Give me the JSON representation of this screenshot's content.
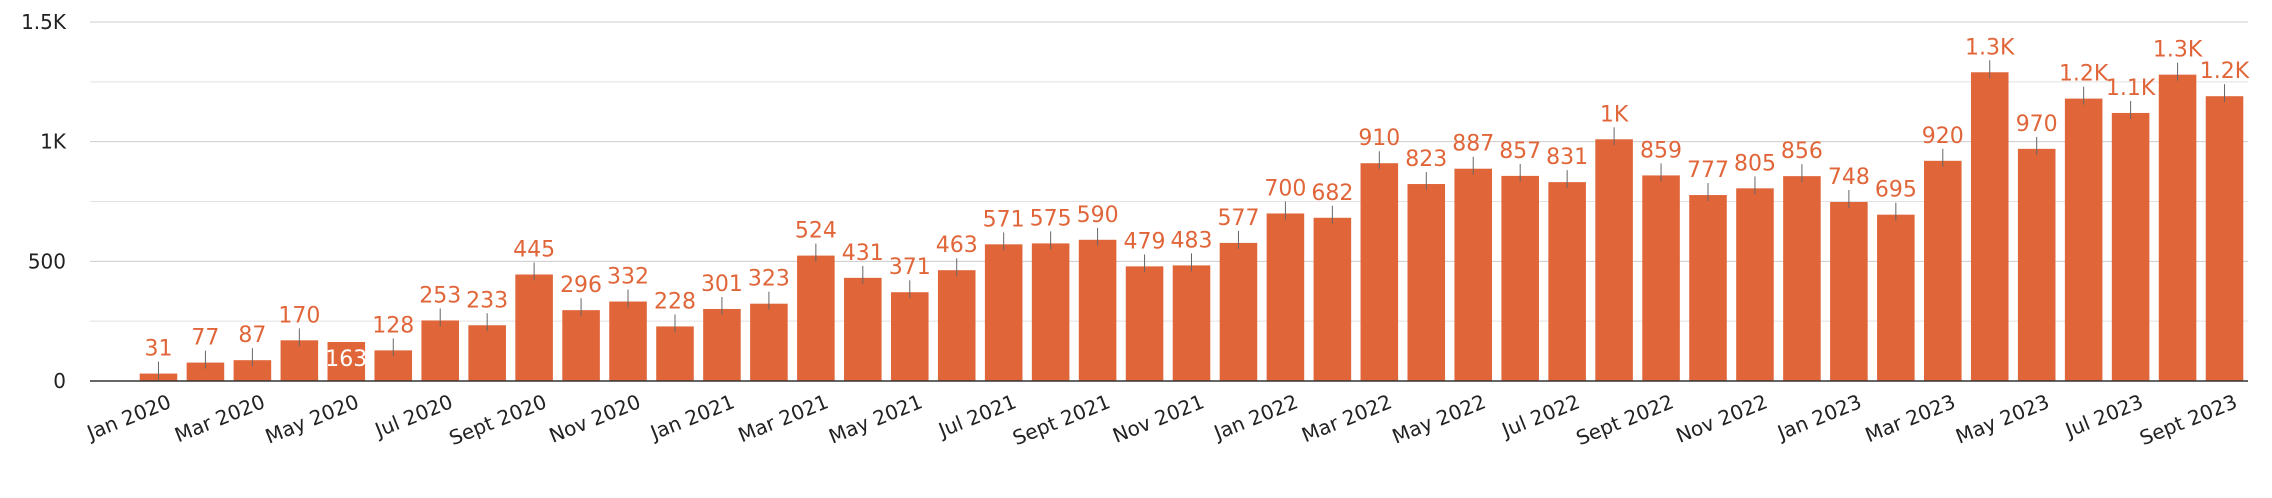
{
  "chart_data": {
    "type": "bar",
    "title": "",
    "xlabel": "",
    "ylabel": "",
    "ylim": [
      0,
      1500
    ],
    "y_ticks": [
      0,
      500,
      1000,
      1500
    ],
    "y_tick_labels": [
      "0",
      "500",
      "1K",
      "1.5K"
    ],
    "grid": true,
    "legend": "none",
    "bar_color": "#e0663a",
    "label_color": "#e0663a",
    "categories": [
      "Jan 2020",
      "Feb 2020",
      "Mar 2020",
      "Apr 2020",
      "May 2020",
      "Jun 2020",
      "Jul 2020",
      "Aug 2020",
      "Sept 2020",
      "Oct 2020",
      "Nov 2020",
      "Dec 2020",
      "Jan 2021",
      "Feb 2021",
      "Mar 2021",
      "Apr 2021",
      "May 2021",
      "Jun 2021",
      "Jul 2021",
      "Aug 2021",
      "Sept 2021",
      "Oct 2021",
      "Nov 2021",
      "Dec 2021",
      "Jan 2022",
      "Feb 2022",
      "Mar 2022",
      "Apr 2022",
      "May 2022",
      "Jun 2022",
      "Jul 2022",
      "Aug 2022",
      "Sept 2022",
      "Oct 2022",
      "Nov 2022",
      "Dec 2022",
      "Jan 2023",
      "Feb 2023",
      "Mar 2023",
      "Apr 2023",
      "May 2023",
      "Jun 2023",
      "Jul 2023",
      "Aug 2023",
      "Sept 2023"
    ],
    "x_tick_labels": [
      "Jan 2020",
      "Mar 2020",
      "May 2020",
      "Jul 2020",
      "Sept 2020",
      "Nov 2020",
      "Jan 2021",
      "Mar 2021",
      "May 2021",
      "Jul 2021",
      "Sept 2021",
      "Nov 2021",
      "Jan 2022",
      "Mar 2022",
      "May 2022",
      "Jul 2022",
      "Sept 2022",
      "Nov 2022",
      "Jan 2023",
      "Mar 2023",
      "May 2023",
      "Jul 2023",
      "Sept 2023"
    ],
    "values": [
      31,
      77,
      87,
      170,
      163,
      128,
      253,
      233,
      445,
      296,
      332,
      228,
      301,
      323,
      524,
      431,
      371,
      463,
      571,
      575,
      590,
      479,
      483,
      577,
      700,
      682,
      910,
      823,
      887,
      857,
      831,
      1010,
      859,
      777,
      805,
      856,
      748,
      695,
      920,
      1290,
      970,
      1180,
      1120,
      1280,
      1190
    ],
    "data_labels": [
      "31",
      "77",
      "87",
      "170",
      "163",
      "128",
      "253",
      "233",
      "445",
      "296",
      "332",
      "228",
      "301",
      "323",
      "524",
      "431",
      "371",
      "463",
      "571",
      "575",
      "590",
      "479",
      "483",
      "577",
      "700",
      "682",
      "910",
      "823",
      "887",
      "857",
      "831",
      "1K",
      "859",
      "777",
      "805",
      "856",
      "748",
      "695",
      "920",
      "1.3K",
      "970",
      "1.2K",
      "1.1K",
      "1.3K",
      "1.2K"
    ],
    "error_margins": [
      50,
      50,
      50,
      50,
      0,
      50,
      50,
      50,
      50,
      50,
      50,
      50,
      50,
      50,
      50,
      50,
      50,
      50,
      50,
      50,
      50,
      50,
      50,
      50,
      50,
      50,
      50,
      50,
      50,
      50,
      50,
      50,
      50,
      50,
      50,
      50,
      50,
      50,
      50,
      50,
      50,
      50,
      50,
      50,
      50
    ],
    "inside_label_indices": [
      4
    ]
  }
}
